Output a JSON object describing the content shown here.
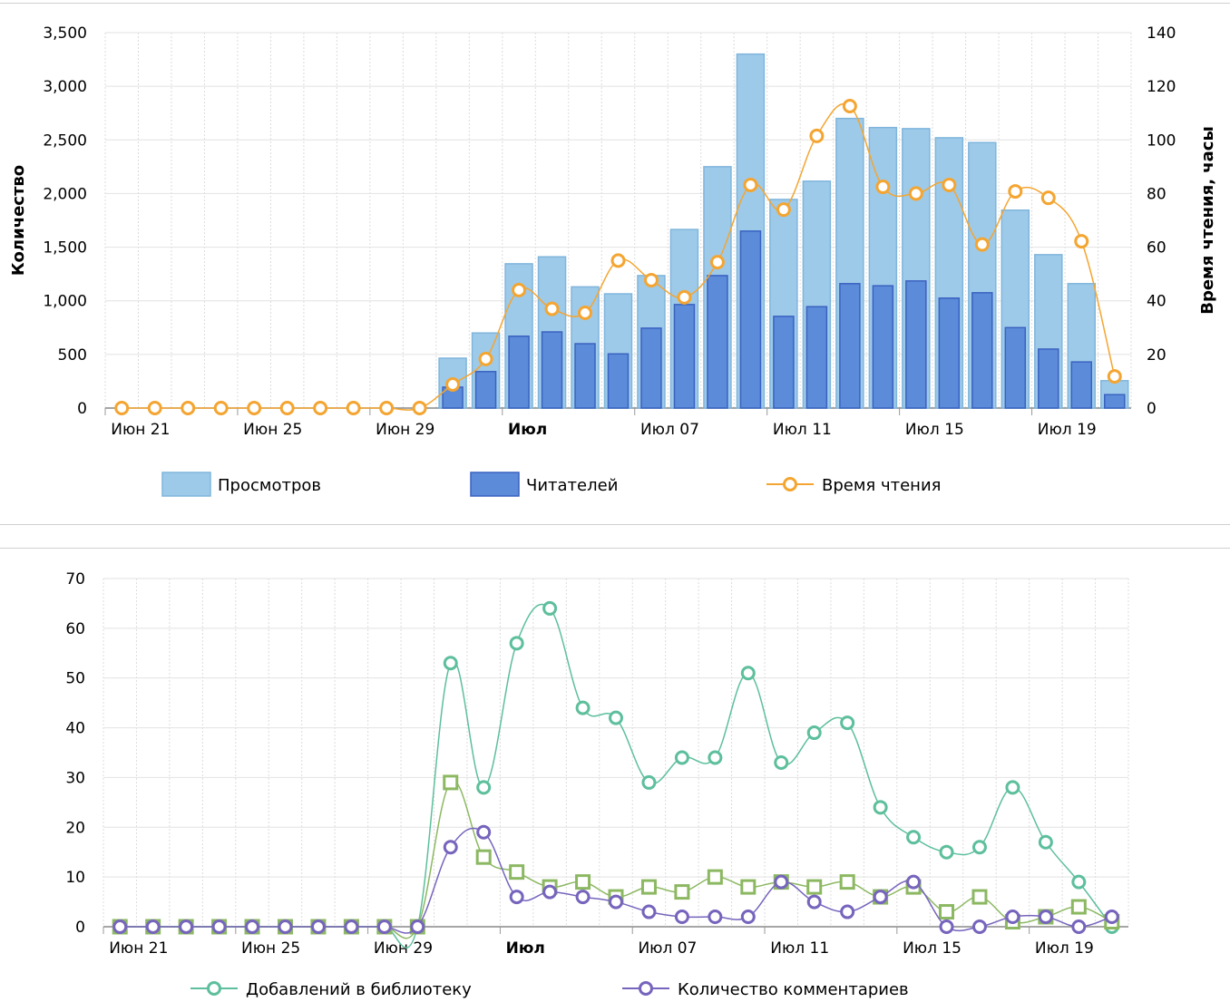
{
  "chart_data": [
    {
      "type": "bar+line",
      "categories": [
        "Июн 21",
        "Июн 22",
        "Июн 23",
        "Июн 24",
        "Июн 25",
        "Июн 26",
        "Июн 27",
        "Июн 28",
        "Июн 29",
        "Июн 30",
        "Июл 01",
        "Июл 02",
        "Июл 03",
        "Июл 04",
        "Июл 05",
        "Июл 06",
        "Июл 07",
        "Июл 08",
        "Июл 09",
        "Июл 10",
        "Июл 11",
        "Июл 12",
        "Июл 13",
        "Июл 14",
        "Июл 15",
        "Июл 16",
        "Июл 17",
        "Июл 18",
        "Июл 19",
        "Июл 20",
        "Июл 21"
      ],
      "x_tick_labels": [
        {
          "index": 0,
          "label": "Июн 21"
        },
        {
          "index": 4,
          "label": "Июн 25"
        },
        {
          "index": 8,
          "label": "Июн 29"
        },
        {
          "index": 12,
          "label": "Июл",
          "bold": true
        },
        {
          "index": 16,
          "label": "Июл 07"
        },
        {
          "index": 20,
          "label": "Июл 11"
        },
        {
          "index": 24,
          "label": "Июл 15"
        },
        {
          "index": 28,
          "label": "Июл 19"
        }
      ],
      "ylabel": "Количество",
      "ylim": [
        0,
        3500
      ],
      "yticks": [
        "0",
        "500",
        "1,000",
        "1,500",
        "2,000",
        "2,500",
        "3,000",
        "3,500"
      ],
      "y2label": "Время чтения, часы",
      "y2lim": [
        0,
        140
      ],
      "y2ticks": [
        "0",
        "20",
        "40",
        "60",
        "80",
        "100",
        "120",
        "140"
      ],
      "grid": true,
      "legend_position": "bottom",
      "series": [
        {
          "name": "Просмотров",
          "kind": "bar",
          "color": "#9ecae9",
          "border": "#7fb5dc",
          "values": [
            null,
            null,
            null,
            null,
            null,
            null,
            null,
            null,
            null,
            null,
            465,
            700,
            1345,
            1410,
            1130,
            1065,
            1235,
            1665,
            2250,
            3300,
            1945,
            2115,
            2700,
            2615,
            2605,
            2520,
            2475,
            1845,
            1430,
            1160,
            255
          ]
        },
        {
          "name": "Читателей",
          "kind": "bar",
          "color": "#5b8bd9",
          "border": "#3a62c0",
          "values": [
            null,
            null,
            null,
            null,
            null,
            null,
            null,
            null,
            null,
            null,
            195,
            340,
            670,
            710,
            600,
            505,
            745,
            965,
            1235,
            1650,
            855,
            945,
            1160,
            1140,
            1185,
            1025,
            1075,
            750,
            550,
            430,
            125
          ]
        },
        {
          "name": "Время чтения",
          "kind": "line",
          "axis": "right",
          "color": "#f4a531",
          "values": [
            0,
            0,
            0,
            0,
            0,
            0,
            0,
            0,
            0,
            0,
            8.8,
            18.3,
            44,
            37,
            35.5,
            55,
            47.7,
            41.3,
            54.4,
            83.2,
            74,
            101.5,
            112.6,
            82.5,
            80,
            83.2,
            61,
            80.8,
            78.4,
            62.2,
            11.8
          ]
        }
      ]
    },
    {
      "type": "line",
      "categories": [
        "Июн 21",
        "Июн 22",
        "Июн 23",
        "Июн 24",
        "Июн 25",
        "Июн 26",
        "Июн 27",
        "Июн 28",
        "Июн 29",
        "Июн 30",
        "Июл 01",
        "Июл 02",
        "Июл 03",
        "Июл 04",
        "Июл 05",
        "Июл 06",
        "Июл 07",
        "Июл 08",
        "Июл 09",
        "Июл 10",
        "Июл 11",
        "Июл 12",
        "Июл 13",
        "Июл 14",
        "Июл 15",
        "Июл 16",
        "Июл 17",
        "Июл 18",
        "Июл 19",
        "Июл 20",
        "Июл 21"
      ],
      "x_tick_labels": [
        {
          "index": 0,
          "label": "Июн 21"
        },
        {
          "index": 4,
          "label": "Июн 25"
        },
        {
          "index": 8,
          "label": "Июн 29"
        },
        {
          "index": 12,
          "label": "Июл",
          "bold": true
        },
        {
          "index": 16,
          "label": "Июл 07"
        },
        {
          "index": 20,
          "label": "Июл 11"
        },
        {
          "index": 24,
          "label": "Июл 15"
        },
        {
          "index": 28,
          "label": "Июл 19"
        }
      ],
      "ylim": [
        0,
        70
      ],
      "yticks": [
        "0",
        "10",
        "20",
        "30",
        "40",
        "50",
        "60",
        "70"
      ],
      "grid": true,
      "legend_position": "bottom",
      "series": [
        {
          "name": "Добавлений в библиотеку",
          "marker": "circle",
          "color": "#5dbf9c",
          "values": [
            0,
            0,
            0,
            0,
            0,
            0,
            0,
            0,
            0,
            0,
            53,
            28,
            57,
            64,
            44,
            42,
            29,
            34,
            34,
            51,
            33,
            39,
            41,
            24,
            18,
            15,
            16,
            28,
            17,
            9,
            0
          ]
        },
        {
          "marker": "square",
          "color": "#8cb862",
          "values": [
            0,
            0,
            0,
            0,
            0,
            0,
            0,
            0,
            0,
            0,
            29,
            14,
            11,
            8,
            9,
            6,
            8,
            7,
            10,
            8,
            9,
            8,
            9,
            6,
            8,
            3,
            6,
            1,
            2,
            4,
            1
          ]
        },
        {
          "name": "Количество комментариев",
          "marker": "circle",
          "color": "#7664bd",
          "values": [
            0,
            0,
            0,
            0,
            0,
            0,
            0,
            0,
            0,
            0,
            16,
            19,
            6,
            7,
            6,
            5,
            3,
            2,
            2,
            2,
            9,
            5,
            3,
            6,
            9,
            0,
            0,
            2,
            2,
            0,
            2
          ]
        }
      ]
    }
  ]
}
